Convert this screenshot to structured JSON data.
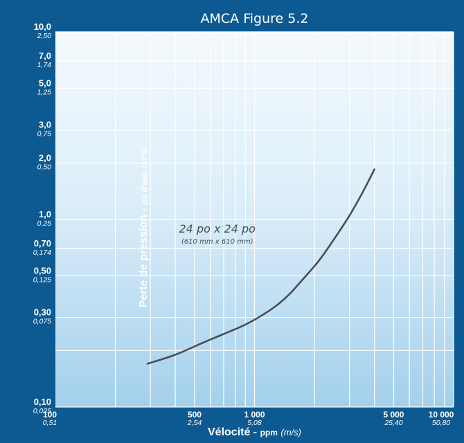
{
  "chart_data": {
    "type": "line",
    "title": "AMCA Figure 5.2",
    "ylabel": {
      "main": "Perte de pression",
      "sep": " - ",
      "mid": "po d'eau",
      "unit": "(kPa)"
    },
    "xlabel": {
      "main": "Vélocité",
      "sep": " - ",
      "mid": "ppm",
      "unit": "(m/s)"
    },
    "x_scale": "log",
    "y_scale": "log",
    "xlim": [
      100,
      10000
    ],
    "ylim": [
      0.1,
      10
    ],
    "grid": true,
    "y_ticks": [
      {
        "value": 10,
        "label": "10,0",
        "sub": "2,50"
      },
      {
        "value": 7,
        "label": "7,0",
        "sub": "1,74"
      },
      {
        "value": 5,
        "label": "5,0",
        "sub": "1,25"
      },
      {
        "value": 3,
        "label": "3,0",
        "sub": "0,75"
      },
      {
        "value": 2,
        "label": "2,0",
        "sub": "0,50"
      },
      {
        "value": 1,
        "label": "1,0",
        "sub": "0,25"
      },
      {
        "value": 0.7,
        "label": "0,70",
        "sub": "0,174"
      },
      {
        "value": 0.5,
        "label": "0,50",
        "sub": "0,125"
      },
      {
        "value": 0.3,
        "label": "0,30",
        "sub": "0,075"
      },
      {
        "value": 0.1,
        "label": "0,10",
        "sub": "0,025"
      }
    ],
    "y_minor_gridlines": [
      0.2
    ],
    "x_ticks": [
      {
        "value": 100,
        "label": "100",
        "sub": "0,51"
      },
      {
        "value": 500,
        "label": "500",
        "sub": "2,54"
      },
      {
        "value": 1000,
        "label": "1 000",
        "sub": "5,08"
      },
      {
        "value": 5000,
        "label": "5 000",
        "sub": "25,40"
      },
      {
        "value": 10000,
        "label": "10 000",
        "sub": "50,80"
      }
    ],
    "x_gridlines": [
      200,
      300,
      400,
      500,
      600,
      700,
      800,
      900,
      1000,
      2000,
      3000,
      4000,
      5000,
      6000,
      7000,
      8000,
      9000,
      10000
    ],
    "series": [
      {
        "color": "#4a4e54",
        "x": [
          290,
          400,
          550,
          700,
          900,
          1100,
          1300,
          1500,
          1750,
          2100,
          2500,
          3000,
          3500,
          4000
        ],
        "y": [
          0.17,
          0.19,
          0.22,
          0.245,
          0.275,
          0.31,
          0.35,
          0.4,
          0.48,
          0.6,
          0.78,
          1.05,
          1.4,
          1.85
        ]
      }
    ],
    "annotations": [
      {
        "text": "24 po x 24 po",
        "sub": "(610 mm x 610 mm)",
        "x": 650,
        "y": 0.85
      }
    ]
  }
}
